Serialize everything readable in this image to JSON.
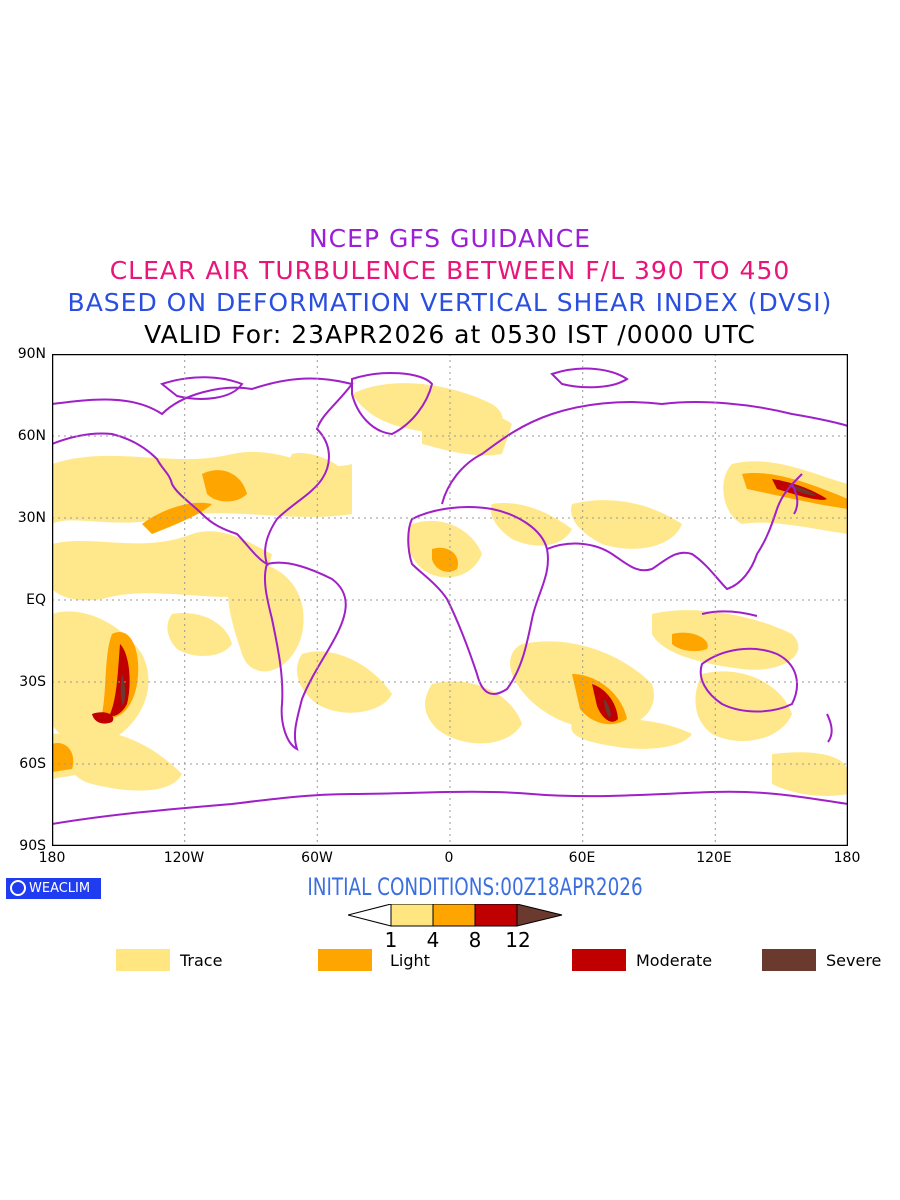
{
  "titles": {
    "line1": "NCEP GFS GUIDANCE",
    "line2": "CLEAR AIR TURBULENCE BETWEEN F/L 390 TO 450",
    "line3": "BASED ON DEFORMATION VERTICAL SHEAR INDEX (DVSI)",
    "line4": "VALID For: 23APR2026 at 0530 IST /0000 UTC"
  },
  "axes": {
    "lat_labels": [
      "90N",
      "60N",
      "30N",
      "EQ",
      "30S",
      "60S",
      "90S"
    ],
    "lon_labels": [
      "180",
      "120W",
      "60W",
      "0",
      "60E",
      "120E",
      "180"
    ]
  },
  "logo_text": "WEACLIM",
  "initial_conditions": "INITIAL CONDITIONS:00Z18APR2026",
  "colorbar": {
    "ticks": [
      "1",
      "4",
      "8",
      "12"
    ],
    "colors": [
      "#ffffff",
      "#ffe680",
      "#ffa500",
      "#c00000",
      "#6b3a2e"
    ]
  },
  "legend": [
    {
      "label": "Trace",
      "color": "#ffe680"
    },
    {
      "label": "Light",
      "color": "#ffa500"
    },
    {
      "label": "Moderate",
      "color": "#c00000"
    },
    {
      "label": "Severe",
      "color": "#6b3a2e"
    }
  ],
  "colors": {
    "coastline": "#a020c8",
    "trace": "#ffe680",
    "light": "#ffa500",
    "moderate": "#c00000",
    "severe": "#6b3a2e"
  }
}
